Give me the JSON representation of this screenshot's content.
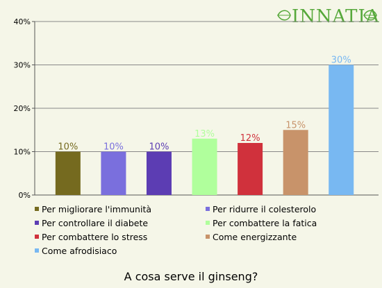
{
  "logo": {
    "text": "INNATIA",
    "color": "#56a83a"
  },
  "chart_data": {
    "type": "bar",
    "title": "A cosa serve il ginseng?",
    "xlabel": "",
    "ylabel": "",
    "ylim": [
      0,
      40
    ],
    "y_ticks": [
      0,
      10,
      20,
      30,
      40
    ],
    "y_tick_labels": [
      "0%",
      "10%",
      "20%",
      "30%",
      "40%"
    ],
    "grid": "horizontal",
    "legend_position": "bottom",
    "categories": [
      "Per migliorare l'immunità",
      "Per ridurre il colesterolo",
      "Per controllare il diabete",
      "Per combattere la fatica",
      "Per combattere lo stress",
      "Come energizzante",
      "Come afrodisiaco"
    ],
    "values": [
      10,
      10,
      10,
      13,
      12,
      15,
      30
    ],
    "data_labels": [
      "10%",
      "10%",
      "10%",
      "13%",
      "12%",
      "15%",
      "30%"
    ],
    "colors": [
      "#756a1f",
      "#7a6fdd",
      "#5c3db3",
      "#b0ff9c",
      "#d0313c",
      "#c8936a",
      "#78b8f2"
    ]
  }
}
